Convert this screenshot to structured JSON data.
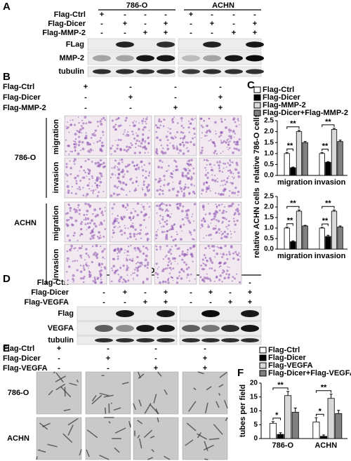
{
  "panel_labels": [
    "A",
    "B",
    "C",
    "D",
    "E",
    "F"
  ],
  "panels": {
    "A": {
      "cell_lines": [
        "786-O",
        "ACHN"
      ],
      "conditions": [
        {
          "name": "Flag-Ctrl",
          "signs": [
            "+",
            "-",
            "-",
            "-",
            "+",
            "-",
            "-",
            "-"
          ]
        },
        {
          "name": "Flag-Dicer",
          "signs": [
            "-",
            "+",
            "-",
            "+",
            "-",
            "+",
            "-",
            "+"
          ]
        },
        {
          "name": "Flag-MMP-2",
          "signs": [
            "-",
            "-",
            "+",
            "+",
            "-",
            "-",
            "+",
            "+"
          ]
        }
      ],
      "blots": [
        "FLag",
        "MMP-2",
        "tubulin"
      ]
    },
    "B": {
      "conditions": [
        {
          "name": "Flag-Ctrl",
          "signs": [
            "+",
            "-",
            "-",
            "-"
          ]
        },
        {
          "name": "Flag-Dicer",
          "signs": [
            "-",
            "+",
            "-",
            "+"
          ]
        },
        {
          "name": "Flag-MMP-2",
          "signs": [
            "-",
            "-",
            "+",
            "+"
          ]
        }
      ],
      "cell_lines": [
        "786-O",
        "ACHN"
      ],
      "assays": [
        "migration",
        "invasion"
      ]
    },
    "D": {
      "cell_lines": [
        "786-O",
        "ACHN"
      ],
      "conditions": [
        {
          "name": "Flag-Ctrl",
          "signs": [
            "+",
            "-",
            "-",
            "-",
            "+",
            "-",
            "-",
            "-"
          ]
        },
        {
          "name": "Flag-Dicer",
          "signs": [
            "-",
            "+",
            "-",
            "+",
            "-",
            "+",
            "-",
            "+"
          ]
        },
        {
          "name": "Flag-VEGFA",
          "signs": [
            "-",
            "-",
            "+",
            "+",
            "-",
            "-",
            "+",
            "+"
          ]
        }
      ],
      "blots": [
        "Flag",
        "VEGFA",
        "tubulin"
      ]
    },
    "E": {
      "conditions": [
        {
          "name": "Flag-Ctrl",
          "signs": [
            "+",
            "-",
            "-",
            "-"
          ]
        },
        {
          "name": "Flag-Dicer",
          "signs": [
            "-",
            "+",
            "-",
            "+"
          ]
        },
        {
          "name": "Flag-VEGFA",
          "signs": [
            "-",
            "-",
            "+",
            "+"
          ]
        }
      ],
      "cell_lines": [
        "786-O",
        "ACHN"
      ]
    }
  },
  "chart_data": [
    {
      "type": "bar",
      "y_label": "relative 786-O cells",
      "categories": [
        "migration",
        "invasion"
      ],
      "ylim": [
        0,
        2.5
      ],
      "yticks": [
        {
          "value": 0,
          "label": "0.0"
        },
        0.5,
        {
          "value": 1,
          "label": "1.0"
        },
        1.5,
        {
          "value": 2,
          "label": "2.0"
        },
        2.5
      ],
      "series": [
        {
          "name": "Flag-Ctrl",
          "color": "#ffffff",
          "values": [
            1.0,
            1.0
          ],
          "errors": [
            0.05,
            0.04
          ]
        },
        {
          "name": "Flag-Dicer",
          "color": "#000000",
          "values": [
            0.35,
            0.6
          ],
          "errors": [
            0.03,
            0.03
          ]
        },
        {
          "name": "Flag-MMP-2",
          "color": "#d9d9d9",
          "values": [
            2.0,
            2.1
          ],
          "errors": [
            0.06,
            0.05
          ]
        },
        {
          "name": "Flag-Dicer+Flag-MMP-2",
          "color": "#808080",
          "values": [
            1.5,
            1.55
          ],
          "errors": [
            0.05,
            0.06
          ]
        }
      ],
      "annotations": [
        "**",
        "**",
        "**",
        "**"
      ]
    },
    {
      "type": "bar",
      "y_label": "relative ACHN cells",
      "categories": [
        "migration",
        "invasion"
      ],
      "ylim": [
        0,
        2.5
      ],
      "yticks": [
        {
          "value": 0,
          "label": "0.0"
        },
        0.5,
        {
          "value": 1,
          "label": "1.0"
        },
        1.5,
        {
          "value": 2,
          "label": "2.0"
        },
        2.5
      ],
      "series": [
        {
          "color": "#ffffff",
          "values": [
            1.0,
            1.0
          ],
          "errors": [
            0.04,
            0.03
          ]
        },
        {
          "color": "#000000",
          "values": [
            0.35,
            0.6
          ],
          "errors": [
            0.04,
            0.06
          ]
        },
        {
          "color": "#d9d9d9",
          "values": [
            1.8,
            1.8
          ],
          "errors": [
            0.06,
            0.06
          ]
        },
        {
          "color": "#808080",
          "values": [
            1.1,
            1.05
          ],
          "errors": [
            0.03,
            0.05
          ]
        }
      ],
      "annotations": [
        "**",
        "**",
        "**",
        "**"
      ]
    },
    {
      "type": "bar",
      "y_label": "tubes per field",
      "categories": [
        "786-O",
        "ACHN"
      ],
      "ylim": [
        0,
        20
      ],
      "yticks": [
        0,
        5,
        10,
        15,
        20
      ],
      "series": [
        {
          "name": "Flag-Ctrl",
          "color": "#ffffff",
          "values": [
            5.5,
            6
          ],
          "errors": [
            0.6,
            1.5
          ]
        },
        {
          "name": "Flag-Dicer",
          "color": "#000000",
          "values": [
            1.5,
            0.8
          ],
          "errors": [
            0.6,
            0.5
          ]
        },
        {
          "name": "Flag-VEGFA",
          "color": "#d9d9d9",
          "values": [
            15.5,
            14.5
          ],
          "errors": [
            1.5,
            1.5
          ]
        },
        {
          "name": "Flag-Dicer+Flag-VEGFA",
          "color": "#808080",
          "values": [
            9.5,
            9
          ],
          "errors": [
            1.5,
            1.2
          ]
        }
      ],
      "annotations": [
        "*",
        "**",
        "*",
        "**"
      ]
    }
  ]
}
